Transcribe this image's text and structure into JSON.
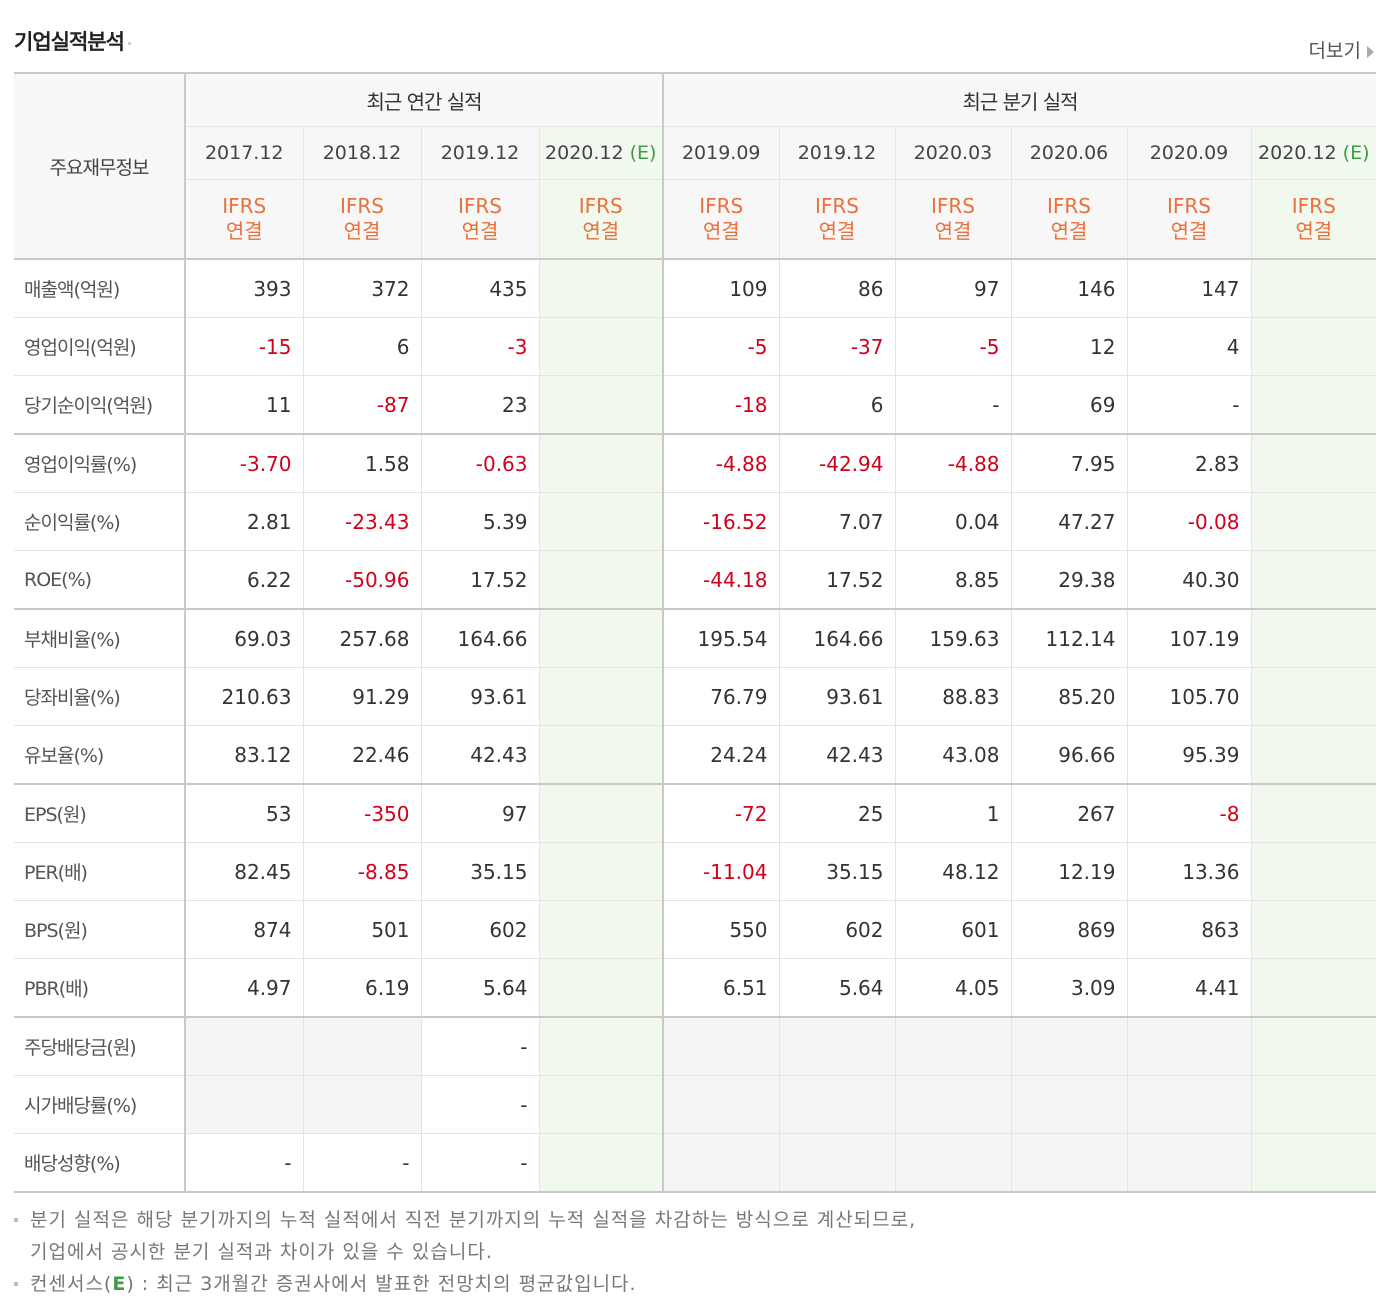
{
  "header": {
    "title": "기업실적분석",
    "more_label": "더보기"
  },
  "table": {
    "corner_label": "주요재무정보",
    "group_annual": "최근 연간 실적",
    "group_quarter": "최근 분기 실적",
    "periods": [
      "2017.12",
      "2018.12",
      "2019.12",
      "2020.12",
      "2019.09",
      "2019.12",
      "2020.03",
      "2020.06",
      "2020.09",
      "2020.12"
    ],
    "estimate_mark": "(E)",
    "ifrs_line1": "IFRS",
    "ifrs_line2": "연결",
    "rows": [
      {
        "label": "매출액(억원)",
        "values": [
          "393",
          "372",
          "435",
          "",
          "109",
          "86",
          "97",
          "146",
          "147",
          ""
        ]
      },
      {
        "label": "영업이익(억원)",
        "values": [
          "-15",
          "6",
          "-3",
          "",
          "-5",
          "-37",
          "-5",
          "12",
          "4",
          ""
        ]
      },
      {
        "label": "당기순이익(억원)",
        "values": [
          "11",
          "-87",
          "23",
          "",
          "-18",
          "6",
          "-",
          "69",
          "-",
          ""
        ]
      },
      {
        "label": "영업이익률(%)",
        "values": [
          "-3.70",
          "1.58",
          "-0.63",
          "",
          "-4.88",
          "-42.94",
          "-4.88",
          "7.95",
          "2.83",
          ""
        ]
      },
      {
        "label": "순이익률(%)",
        "values": [
          "2.81",
          "-23.43",
          "5.39",
          "",
          "-16.52",
          "7.07",
          "0.04",
          "47.27",
          "-0.08",
          ""
        ]
      },
      {
        "label": "ROE(%)",
        "values": [
          "6.22",
          "-50.96",
          "17.52",
          "",
          "-44.18",
          "17.52",
          "8.85",
          "29.38",
          "40.30",
          ""
        ]
      },
      {
        "label": "부채비율(%)",
        "values": [
          "69.03",
          "257.68",
          "164.66",
          "",
          "195.54",
          "164.66",
          "159.63",
          "112.14",
          "107.19",
          ""
        ]
      },
      {
        "label": "당좌비율(%)",
        "values": [
          "210.63",
          "91.29",
          "93.61",
          "",
          "76.79",
          "93.61",
          "88.83",
          "85.20",
          "105.70",
          ""
        ]
      },
      {
        "label": "유보율(%)",
        "values": [
          "83.12",
          "22.46",
          "42.43",
          "",
          "24.24",
          "42.43",
          "43.08",
          "96.66",
          "95.39",
          ""
        ]
      },
      {
        "label": "EPS(원)",
        "values": [
          "53",
          "-350",
          "97",
          "",
          "-72",
          "25",
          "1",
          "267",
          "-8",
          ""
        ]
      },
      {
        "label": "PER(배)",
        "values": [
          "82.45",
          "-8.85",
          "35.15",
          "",
          "-11.04",
          "35.15",
          "48.12",
          "12.19",
          "13.36",
          ""
        ]
      },
      {
        "label": "BPS(원)",
        "values": [
          "874",
          "501",
          "602",
          "",
          "550",
          "602",
          "601",
          "869",
          "863",
          ""
        ]
      },
      {
        "label": "PBR(배)",
        "values": [
          "4.97",
          "6.19",
          "5.64",
          "",
          "6.51",
          "5.64",
          "4.05",
          "3.09",
          "4.41",
          ""
        ]
      },
      {
        "label": "주당배당금(원)",
        "values": [
          "",
          "",
          "-",
          "",
          "",
          "",
          "",
          "",
          "",
          ""
        ]
      },
      {
        "label": "시가배당률(%)",
        "values": [
          "",
          "",
          "-",
          "",
          "",
          "",
          "",
          "",
          "",
          ""
        ]
      },
      {
        "label": "배당성향(%)",
        "values": [
          "-",
          "-",
          "-",
          "",
          "",
          "",
          "",
          "",
          "",
          ""
        ]
      }
    ]
  },
  "notes": {
    "line1": "분기 실적은 해당 분기까지의 누적 실적에서 직전 분기까지의 누적 실적을 차감하는 방식으로 계산되므로,",
    "line2": "기업에서 공시한 분기 실적과 차이가 있을 수 있습니다.",
    "line3_prefix": "컨센서스(",
    "line3_mark": "E",
    "line3_suffix": ") : 최근 3개월간 증권사에서 발표한 전망치의 평균값입니다."
  }
}
